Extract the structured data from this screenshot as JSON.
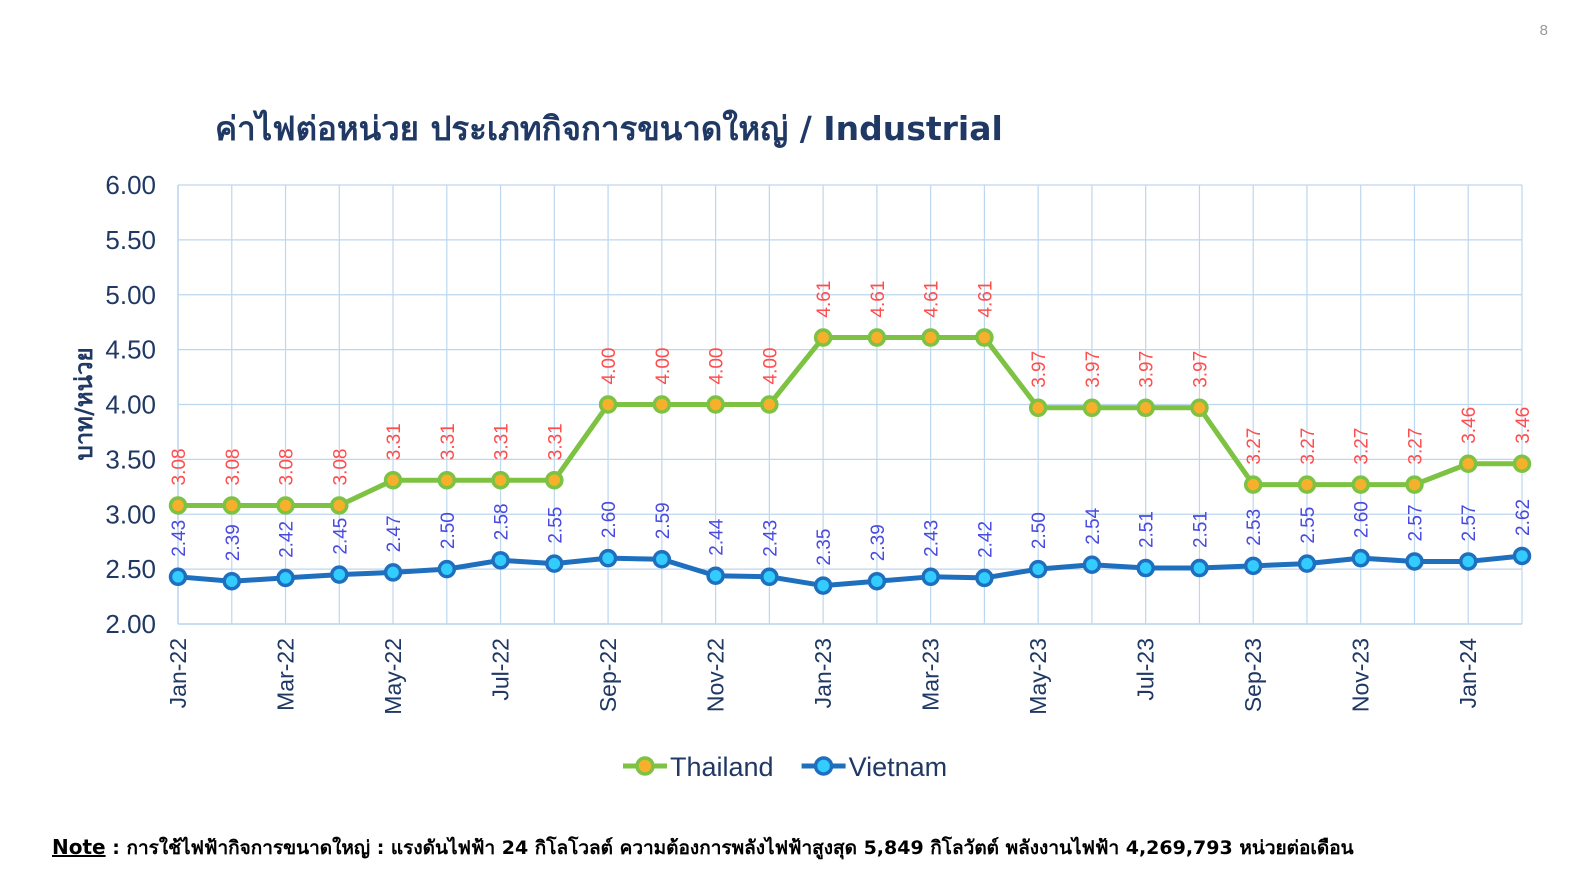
{
  "page_number": "8",
  "title": "ค่าไฟต่อหน่วย ประเภทกิจการขนาดใหญ่ / Industrial",
  "note": {
    "label": "Note",
    "separator": " : ",
    "text": "การใช้ไฟฟ้ากิจการขนาดใหญ่ : แรงดันไฟฟ้า 24 กิโลโวลต์ ความต้องการพลังไฟฟ้าสูงสุด 5,849 กิโลวัตต์ พลังงานไฟฟ้า 4,269,793 หน่วยต่อเดือน"
  },
  "chart_data": {
    "type": "line",
    "title": "ค่าไฟต่อหน่วย ประเภทกิจการขนาดใหญ่ / Industrial",
    "xlabel": "",
    "ylabel": "บาท/หน่วย",
    "ylim": [
      2.0,
      6.0
    ],
    "yticks": [
      "2.00",
      "2.50",
      "3.00",
      "3.50",
      "4.00",
      "4.50",
      "5.00",
      "5.50",
      "6.00"
    ],
    "x": [
      "Jan-22",
      "Feb-22",
      "Mar-22",
      "Apr-22",
      "May-22",
      "Jun-22",
      "Jul-22",
      "Aug-22",
      "Sep-22",
      "Oct-22",
      "Nov-22",
      "Dec-22",
      "Jan-23",
      "Feb-23",
      "Mar-23",
      "Apr-23",
      "May-23",
      "Jun-23",
      "Jul-23",
      "Aug-23",
      "Sep-23",
      "Oct-23",
      "Nov-23",
      "Dec-23",
      "Jan-24",
      "Feb-24"
    ],
    "x_tick_labels": [
      "Jan-22",
      "",
      "Mar-22",
      "",
      "May-22",
      "",
      "Jul-22",
      "",
      "Sep-22",
      "",
      "Nov-22",
      "",
      "Jan-23",
      "",
      "Mar-23",
      "",
      "May-23",
      "",
      "Jul-23",
      "",
      "Sep-23",
      "",
      "Nov-23",
      "",
      "Jan-24",
      ""
    ],
    "grid": true,
    "legend_position": "bottom",
    "series": [
      {
        "name": "Thailand",
        "line_color": "#7dc242",
        "marker_fill": "#f6b02b",
        "label_color": "#ff4d4d",
        "values": [
          3.08,
          3.08,
          3.08,
          3.08,
          3.31,
          3.31,
          3.31,
          3.31,
          4.0,
          4.0,
          4.0,
          4.0,
          4.61,
          4.61,
          4.61,
          4.61,
          3.97,
          3.97,
          3.97,
          3.97,
          3.27,
          3.27,
          3.27,
          3.27,
          3.46,
          3.46
        ],
        "labels": [
          "3.08",
          "3.08",
          "3.08",
          "3.08",
          "3.31",
          "3.31",
          "3.31",
          "3.31",
          "4.00",
          "4.00",
          "4.00",
          "4.00",
          "4.61",
          "4.61",
          "4.61",
          "4.61",
          "3.97",
          "3.97",
          "3.97",
          "3.97",
          "3.27",
          "3.27",
          "3.27",
          "3.27",
          "3.46",
          "3.46"
        ]
      },
      {
        "name": "Vietnam",
        "line_color": "#1f6fbf",
        "marker_fill": "#33ccff",
        "label_color": "#4a4ae0",
        "values": [
          2.43,
          2.39,
          2.42,
          2.45,
          2.47,
          2.5,
          2.58,
          2.55,
          2.6,
          2.59,
          2.44,
          2.43,
          2.35,
          2.39,
          2.43,
          2.42,
          2.5,
          2.54,
          2.51,
          2.51,
          2.53,
          2.55,
          2.6,
          2.57,
          2.57,
          2.62
        ],
        "labels": [
          "2.43",
          "2.39",
          "2.42",
          "2.45",
          "2.47",
          "2.50",
          "2.58",
          "2.55",
          "2.60",
          "2.59",
          "2.44",
          "2.43",
          "2.35",
          "2.39",
          "2.43",
          "2.42",
          "2.50",
          "2.54",
          "2.51",
          "2.51",
          "2.53",
          "2.55",
          "2.60",
          "2.57",
          "2.57",
          "2.62"
        ]
      }
    ]
  }
}
